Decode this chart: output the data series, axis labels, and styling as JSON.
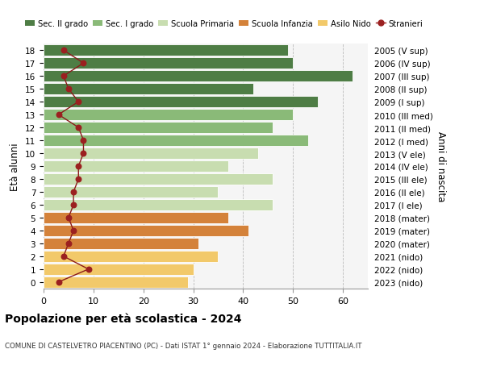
{
  "ages": [
    0,
    1,
    2,
    3,
    4,
    5,
    6,
    7,
    8,
    9,
    10,
    11,
    12,
    13,
    14,
    15,
    16,
    17,
    18
  ],
  "bar_values": [
    29,
    30,
    35,
    31,
    41,
    37,
    46,
    35,
    46,
    37,
    43,
    53,
    46,
    50,
    55,
    42,
    62,
    50,
    49
  ],
  "stranieri": [
    3,
    9,
    4,
    5,
    6,
    5,
    6,
    6,
    7,
    7,
    8,
    8,
    7,
    3,
    7,
    5,
    4,
    8,
    4
  ],
  "right_labels": [
    "2023 (nido)",
    "2022 (nido)",
    "2021 (nido)",
    "2020 (mater)",
    "2019 (mater)",
    "2018 (mater)",
    "2017 (I ele)",
    "2016 (II ele)",
    "2015 (III ele)",
    "2014 (IV ele)",
    "2013 (V ele)",
    "2012 (I med)",
    "2011 (II med)",
    "2010 (III med)",
    "2009 (I sup)",
    "2008 (II sup)",
    "2007 (III sup)",
    "2006 (IV sup)",
    "2005 (V sup)"
  ],
  "bar_colors_by_age": [
    "#f2c96a",
    "#f2c96a",
    "#f2c96a",
    "#d4823a",
    "#d4823a",
    "#d4823a",
    "#c8ddb0",
    "#c8ddb0",
    "#c8ddb0",
    "#c8ddb0",
    "#c8ddb0",
    "#8aba78",
    "#8aba78",
    "#8aba78",
    "#4e7d45",
    "#4e7d45",
    "#4e7d45",
    "#4e7d45",
    "#4e7d45"
  ],
  "title": "Popolazione per età scolastica - 2024",
  "subtitle": "COMUNE DI CASTELVETRO PIACENTINO (PC) - Dati ISTAT 1° gennaio 2024 - Elaborazione TUTTITALIA.IT",
  "ylabel_left": "Età alunni",
  "ylabel_right": "Anni di nascita",
  "xlim": [
    0,
    65
  ],
  "xticks": [
    0,
    10,
    20,
    30,
    40,
    50,
    60
  ],
  "legend_labels": [
    "Sec. II grado",
    "Sec. I grado",
    "Scuola Primaria",
    "Scuola Infanzia",
    "Asilo Nido",
    "Stranieri"
  ],
  "legend_colors": [
    "#4e7d45",
    "#8aba78",
    "#c8ddb0",
    "#d4823a",
    "#f2c96a",
    "#9b2020"
  ]
}
